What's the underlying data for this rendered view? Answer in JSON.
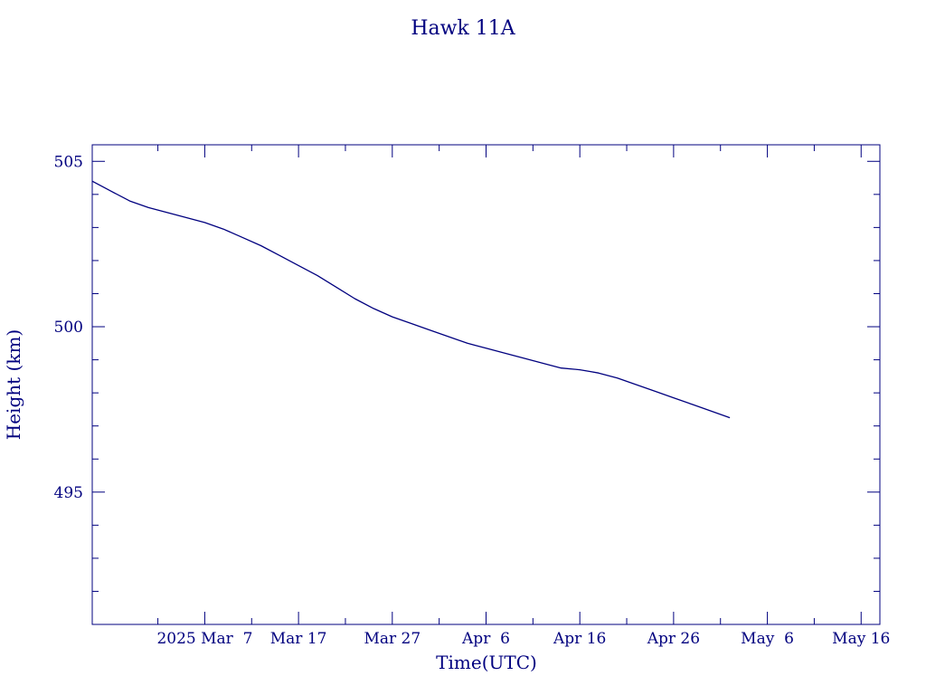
{
  "chart_data": {
    "type": "line",
    "title": "Hawk 11A",
    "xlabel": "Time(UTC)",
    "ylabel": "Height (km)",
    "x_tick_labels": [
      "2025 Mar  7",
      "Mar 17",
      "Mar 27",
      "Apr  6",
      "Apr 16",
      "Apr 26",
      "May  6",
      "May 16"
    ],
    "y_tick_labels": [
      "495",
      "500",
      "505"
    ],
    "y_ticks": [
      495,
      500,
      505
    ],
    "ylim": [
      491,
      505.5
    ],
    "xlim": [
      "2025-02-23",
      "2025-05-18"
    ],
    "x_ticks": [
      "2025-03-02",
      "2025-03-07",
      "2025-03-12",
      "2025-03-17",
      "2025-03-22",
      "2025-03-27",
      "2025-04-01",
      "2025-04-06",
      "2025-04-11",
      "2025-04-16",
      "2025-04-21",
      "2025-04-26",
      "2025-05-01",
      "2025-05-06",
      "2025-05-11",
      "2025-05-16"
    ],
    "grid": false,
    "line_color": "#00007f",
    "series": [
      {
        "x": [
          "2025-02-23",
          "2025-02-25",
          "2025-02-27",
          "2025-03-01",
          "2025-03-03",
          "2025-03-05",
          "2025-03-07",
          "2025-03-09",
          "2025-03-11",
          "2025-03-13",
          "2025-03-15",
          "2025-03-17",
          "2025-03-19",
          "2025-03-21",
          "2025-03-23",
          "2025-03-25",
          "2025-03-27",
          "2025-03-29",
          "2025-03-31",
          "2025-04-02",
          "2025-04-04",
          "2025-04-06",
          "2025-04-08",
          "2025-04-10",
          "2025-04-12",
          "2025-04-14",
          "2025-04-16",
          "2025-04-17",
          "2025-04-18",
          "2025-04-20",
          "2025-04-22",
          "2025-04-24",
          "2025-04-26",
          "2025-04-28",
          "2025-04-30",
          "2025-05-02"
        ],
        "values": [
          504.4,
          504.1,
          503.8,
          503.6,
          503.45,
          503.3,
          503.15,
          502.95,
          502.7,
          502.45,
          502.15,
          501.85,
          501.55,
          501.2,
          500.85,
          500.55,
          500.3,
          500.1,
          499.9,
          499.7,
          499.5,
          499.35,
          499.2,
          499.05,
          498.9,
          498.75,
          498.7,
          498.65,
          498.6,
          498.45,
          498.25,
          498.05,
          497.85,
          497.65,
          497.45,
          497.25
        ]
      }
    ]
  }
}
